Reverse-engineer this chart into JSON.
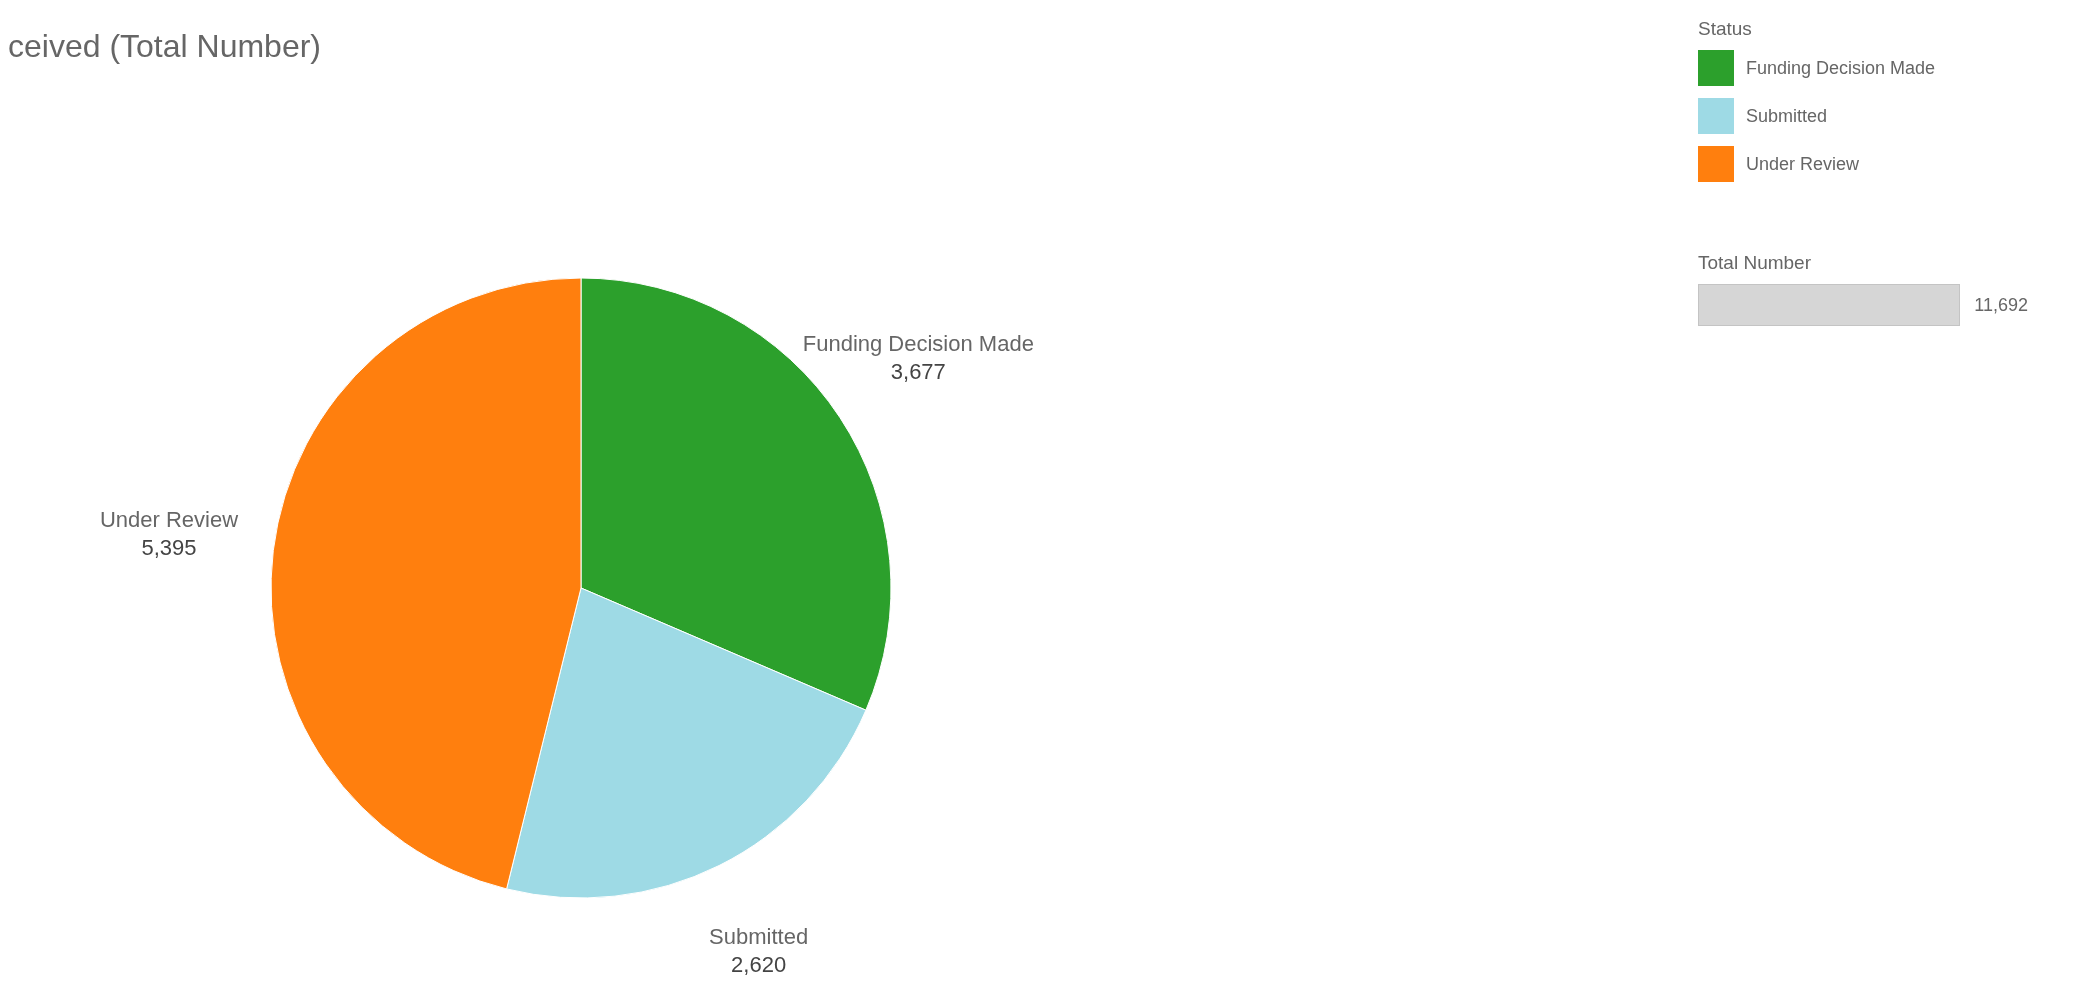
{
  "chart_data": {
    "type": "pie",
    "title": "ceived (Total Number)",
    "legend_title": "Status",
    "legend": "top right",
    "value_labels": [
      "3,677",
      "2,620",
      "5,395"
    ],
    "categories": [
      "Funding Decision Made",
      "Submitted",
      "Under Review"
    ],
    "values": [
      3677,
      2620,
      5395
    ],
    "colors": [
      "#2ca02c",
      "#9edae5",
      "#ff7f0e"
    ],
    "annotations": [
      "Total Number",
      "11,692"
    ]
  }
}
